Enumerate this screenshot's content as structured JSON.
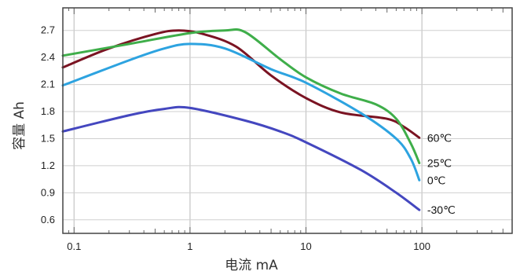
{
  "chart_data": {
    "type": "line",
    "title": "",
    "xlabel": "电流 mA",
    "ylabel": "容量 Ah",
    "x_scale": "log",
    "xlim": [
      0.08,
      600
    ],
    "ylim": [
      0.45,
      2.95
    ],
    "x_ticks": [
      {
        "value": 0.1,
        "label": "0.1"
      },
      {
        "value": 1,
        "label": "1"
      },
      {
        "value": 10,
        "label": "10"
      },
      {
        "value": 100,
        "label": "100"
      }
    ],
    "y_ticks": [
      {
        "value": 0.6,
        "label": "0.6"
      },
      {
        "value": 0.9,
        "label": "0.9"
      },
      {
        "value": 1.2,
        "label": "1.2"
      },
      {
        "value": 1.5,
        "label": "1.5"
      },
      {
        "value": 1.8,
        "label": "1.8"
      },
      {
        "value": 2.1,
        "label": "2.1"
      },
      {
        "value": 2.4,
        "label": "2.4"
      },
      {
        "value": 2.7,
        "label": "2.7"
      }
    ],
    "grid": true,
    "legend": "inline labels at right end of each curve",
    "series": [
      {
        "name": "60℃",
        "color": "#7a1322",
        "points": [
          [
            0.08,
            2.29
          ],
          [
            0.2,
            2.5
          ],
          [
            0.5,
            2.66
          ],
          [
            0.8,
            2.7
          ],
          [
            1.3,
            2.66
          ],
          [
            2.5,
            2.52
          ],
          [
            5,
            2.2
          ],
          [
            10,
            1.95
          ],
          [
            20,
            1.79
          ],
          [
            50,
            1.72
          ],
          [
            70,
            1.63
          ],
          [
            95,
            1.51
          ]
        ]
      },
      {
        "name": "25℃",
        "color": "#3fae4a",
        "points": [
          [
            0.08,
            2.42
          ],
          [
            0.3,
            2.55
          ],
          [
            1,
            2.67
          ],
          [
            2,
            2.7
          ],
          [
            3,
            2.68
          ],
          [
            6,
            2.38
          ],
          [
            10,
            2.18
          ],
          [
            20,
            2.0
          ],
          [
            40,
            1.88
          ],
          [
            60,
            1.72
          ],
          [
            80,
            1.45
          ],
          [
            95,
            1.23
          ]
        ]
      },
      {
        "name": "0℃",
        "color": "#2da3e0",
        "points": [
          [
            0.08,
            2.09
          ],
          [
            0.3,
            2.37
          ],
          [
            0.6,
            2.5
          ],
          [
            1,
            2.55
          ],
          [
            2,
            2.5
          ],
          [
            5,
            2.27
          ],
          [
            10,
            2.12
          ],
          [
            30,
            1.78
          ],
          [
            60,
            1.5
          ],
          [
            80,
            1.28
          ],
          [
            95,
            1.04
          ]
        ]
      },
      {
        "name": "-30℃",
        "color": "#4447bf",
        "points": [
          [
            0.08,
            1.58
          ],
          [
            0.3,
            1.76
          ],
          [
            0.6,
            1.83
          ],
          [
            1,
            1.84
          ],
          [
            3,
            1.7
          ],
          [
            6,
            1.58
          ],
          [
            10,
            1.46
          ],
          [
            30,
            1.15
          ],
          [
            60,
            0.9
          ],
          [
            95,
            0.71
          ]
        ]
      }
    ]
  }
}
